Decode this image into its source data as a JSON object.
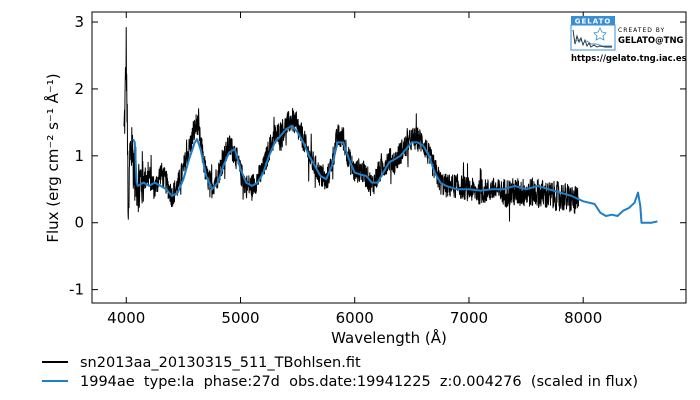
{
  "chart_data": {
    "type": "line",
    "xlabel": "Wavelength (Å)",
    "ylabel": "Flux (erg cm⁻² s⁻¹ Å⁻¹)",
    "xlim": [
      3700,
      8900
    ],
    "ylim": [
      -1.2,
      3.15
    ],
    "xticks": [
      4000,
      5000,
      6000,
      7000,
      8000
    ],
    "yticks": [
      -1,
      0,
      1,
      2,
      3
    ],
    "grid": false,
    "legend": "below-left",
    "series": [
      {
        "name": "sn2013aa_20130315_511_TBohlsen.fit",
        "color": "#000000",
        "style": "noisy",
        "x": [
          3980,
          3990,
          4000,
          4010,
          4020,
          4030,
          4050,
          4080,
          4100,
          4150,
          4200,
          4250,
          4300,
          4350,
          4400,
          4450,
          4500,
          4550,
          4600,
          4620,
          4650,
          4700,
          4750,
          4800,
          4850,
          4900,
          4950,
          5000,
          5050,
          5100,
          5150,
          5200,
          5250,
          5300,
          5350,
          5400,
          5450,
          5500,
          5550,
          5600,
          5650,
          5700,
          5750,
          5800,
          5850,
          5900,
          5950,
          6000,
          6050,
          6100,
          6150,
          6200,
          6250,
          6300,
          6350,
          6400,
          6450,
          6500,
          6550,
          6600,
          6650,
          6700,
          6750,
          6800,
          6900,
          7000,
          7100,
          7200,
          7300,
          7400,
          7500,
          7600,
          7700,
          7800,
          7900,
          7960
        ],
        "y": [
          1.3,
          1.8,
          2.6,
          1.2,
          -0.2,
          1.0,
          1.1,
          0.7,
          0.6,
          0.65,
          0.7,
          0.5,
          0.75,
          0.6,
          0.4,
          0.55,
          0.8,
          1.1,
          1.4,
          1.5,
          1.2,
          0.7,
          0.55,
          0.7,
          0.95,
          1.15,
          1.05,
          0.75,
          0.55,
          0.55,
          0.65,
          0.8,
          1.1,
          1.3,
          1.35,
          1.45,
          1.55,
          1.4,
          1.25,
          1.0,
          0.85,
          0.7,
          0.6,
          0.9,
          1.3,
          1.25,
          0.95,
          0.75,
          0.8,
          0.7,
          0.55,
          0.7,
          0.85,
          0.95,
          0.9,
          1.05,
          1.15,
          1.25,
          1.25,
          1.2,
          1.0,
          0.8,
          0.6,
          0.55,
          0.55,
          0.5,
          0.45,
          0.5,
          0.45,
          0.45,
          0.45,
          0.45,
          0.4,
          0.4,
          0.35,
          0.3
        ]
      },
      {
        "name": "1994ae  type:Ia  phase:27d  obs.date:19941225  z:0.004276  (scaled in flux)",
        "color": "#1f7fc6",
        "style": "line",
        "x": [
          4060,
          4075,
          4090,
          4100,
          4150,
          4200,
          4250,
          4300,
          4350,
          4400,
          4450,
          4500,
          4550,
          4600,
          4620,
          4650,
          4700,
          4750,
          4800,
          4850,
          4900,
          4950,
          5000,
          5050,
          5100,
          5150,
          5200,
          5250,
          5300,
          5350,
          5400,
          5450,
          5500,
          5550,
          5600,
          5650,
          5700,
          5750,
          5800,
          5850,
          5900,
          5950,
          6000,
          6050,
          6100,
          6150,
          6200,
          6250,
          6300,
          6350,
          6400,
          6450,
          6500,
          6550,
          6600,
          6650,
          6700,
          6750,
          6800,
          6900,
          7000,
          7100,
          7200,
          7300,
          7400,
          7500,
          7600,
          7700,
          7800,
          7900,
          8000,
          8100,
          8150,
          8200,
          8250,
          8300,
          8350,
          8400,
          8450,
          8480,
          8500,
          8510,
          8530,
          8600,
          8650
        ],
        "y": [
          1.25,
          1.2,
          0.6,
          0.55,
          0.6,
          0.55,
          0.6,
          0.55,
          0.5,
          0.4,
          0.45,
          0.65,
          0.95,
          1.2,
          1.25,
          1.1,
          0.7,
          0.5,
          0.6,
          0.85,
          1.05,
          1.1,
          0.8,
          0.6,
          0.55,
          0.6,
          0.75,
          1.0,
          1.2,
          1.3,
          1.4,
          1.45,
          1.35,
          1.2,
          1.0,
          0.85,
          0.7,
          0.65,
          0.85,
          1.2,
          1.2,
          0.95,
          0.75,
          0.72,
          0.7,
          0.6,
          0.6,
          0.75,
          0.9,
          0.95,
          1.0,
          1.1,
          1.2,
          1.2,
          1.15,
          1.0,
          0.75,
          0.6,
          0.55,
          0.5,
          0.5,
          0.48,
          0.5,
          0.5,
          0.55,
          0.5,
          0.55,
          0.5,
          0.45,
          0.4,
          0.32,
          0.28,
          0.15,
          0.1,
          0.12,
          0.1,
          0.18,
          0.22,
          0.3,
          0.45,
          0.25,
          0.0,
          0.0,
          0.0,
          0.02
        ]
      }
    ]
  },
  "logo": {
    "name": "GELATO",
    "created_by": "CREATED BY",
    "org": "GELATO@TNG",
    "url": "https://gelato.tng.iac.es",
    "accent": "#3a8fd4"
  }
}
